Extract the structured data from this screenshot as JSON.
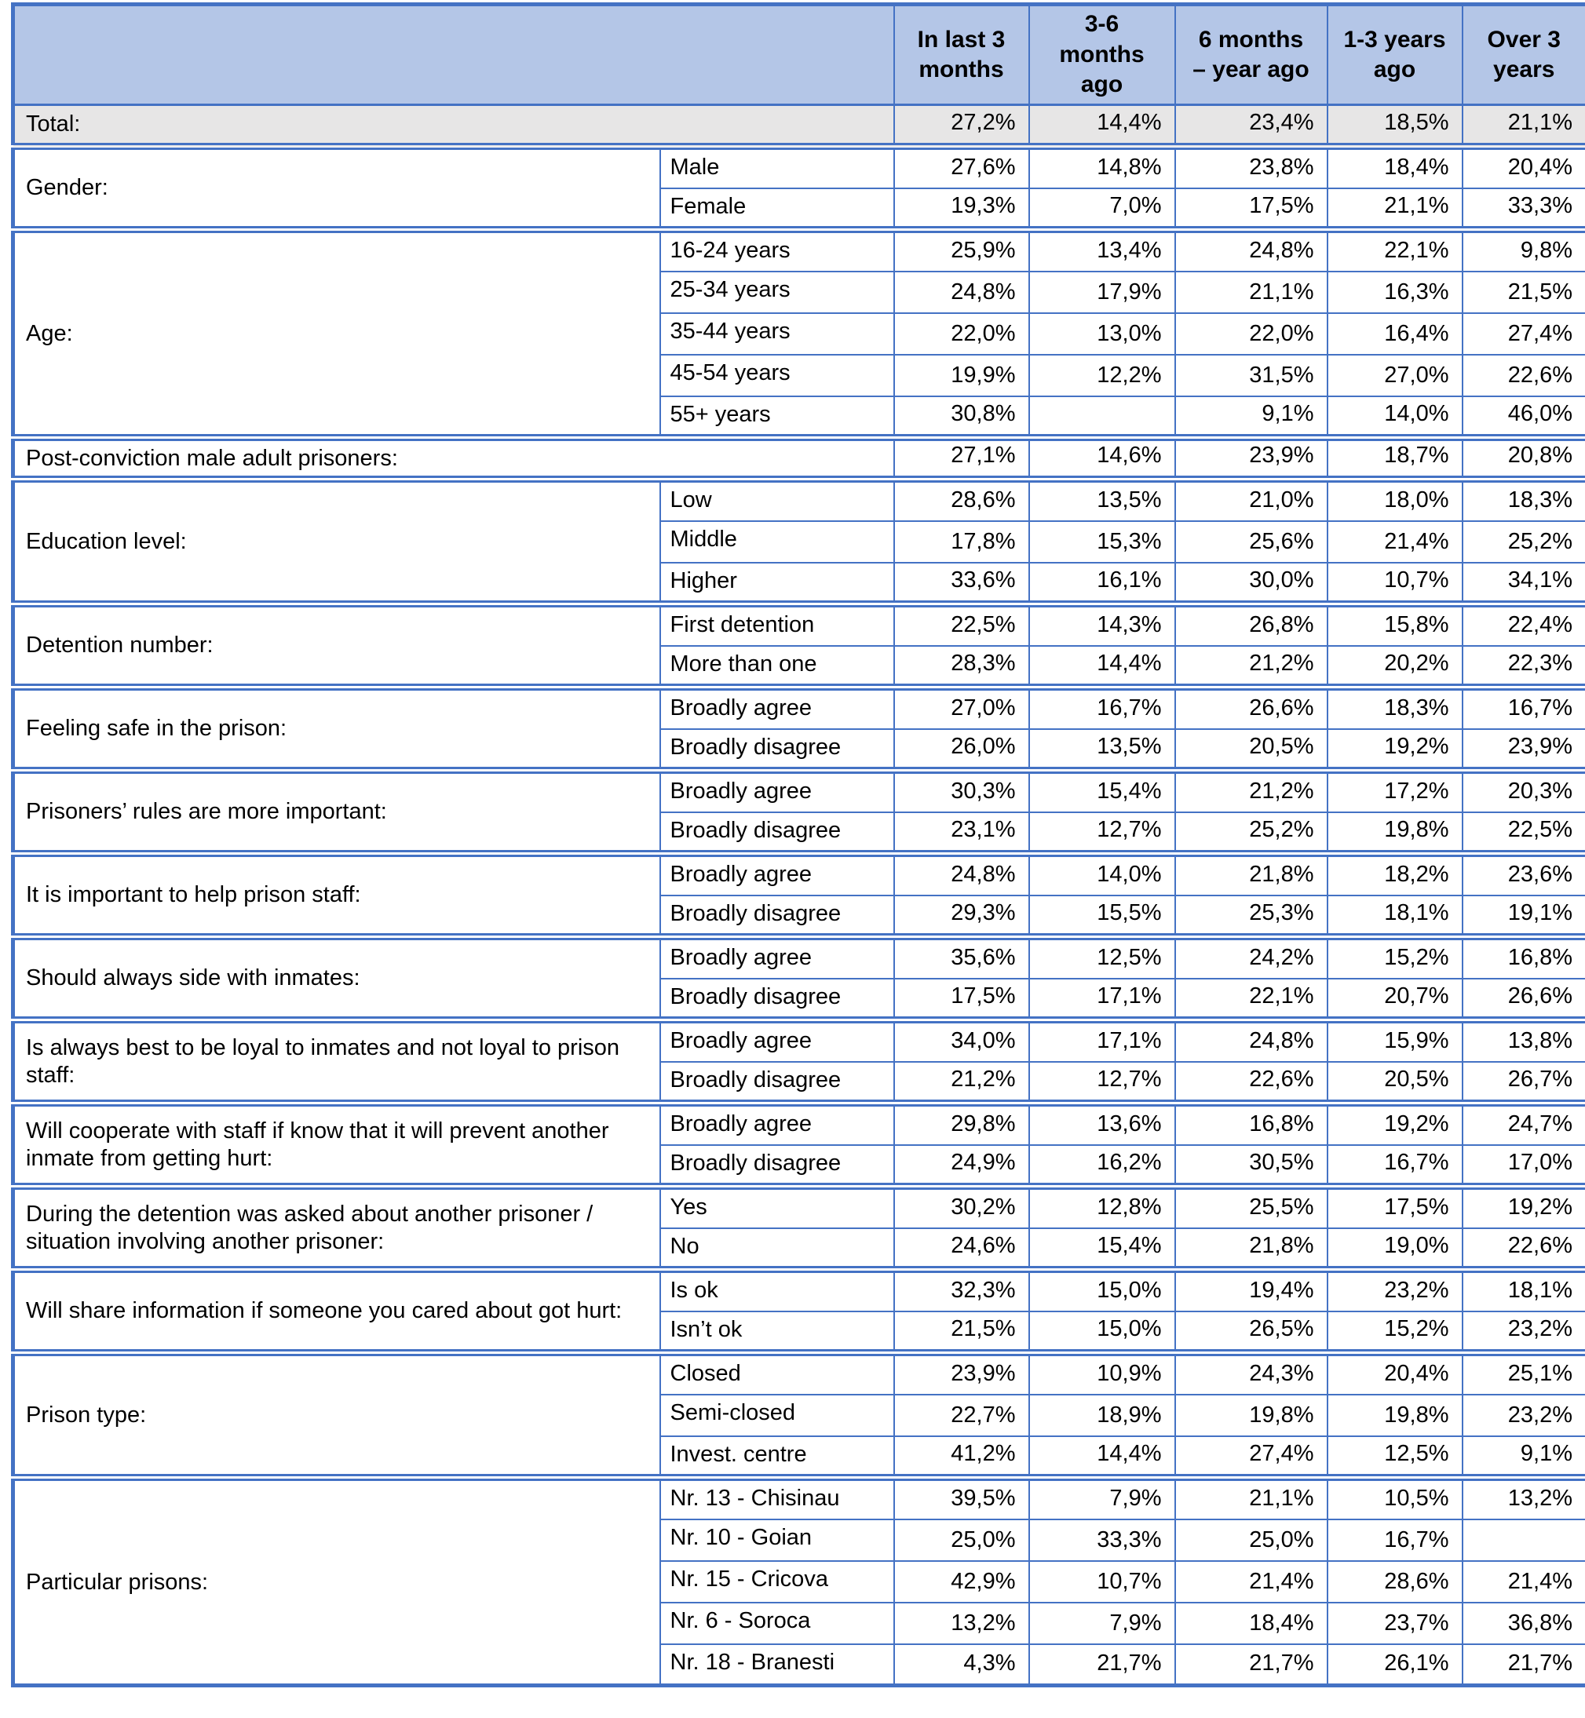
{
  "table": {
    "columns": [
      "In last 3 months",
      "3-6 months ago",
      "6 months – year ago",
      "1-3 years ago",
      "Over 3 years"
    ],
    "total": {
      "label": "Total:",
      "values": [
        "27,2%",
        "14,4%",
        "23,4%",
        "18,5%",
        "21,1%"
      ]
    },
    "groups": [
      {
        "label": "Gender:",
        "rows": [
          {
            "sub": "Male",
            "values": [
              "27,6%",
              "14,8%",
              "23,8%",
              "18,4%",
              "20,4%"
            ]
          },
          {
            "sub": "Female",
            "values": [
              "19,3%",
              "7,0%",
              "17,5%",
              "21,1%",
              "33,3%"
            ]
          }
        ]
      },
      {
        "label": "Age:",
        "rows": [
          {
            "sub": "16-24 years",
            "values": [
              "25,9%",
              "13,4%",
              "24,8%",
              "22,1%",
              "9,8%"
            ]
          },
          {
            "sub": "25-34 years",
            "values": [
              "24,8%",
              "17,9%",
              "21,1%",
              "16,3%",
              "21,5%"
            ]
          },
          {
            "sub": "35-44 years",
            "values": [
              "22,0%",
              "13,0%",
              "22,0%",
              "16,4%",
              "27,4%"
            ]
          },
          {
            "sub": "45-54 years",
            "values": [
              "19,9%",
              "12,2%",
              "31,5%",
              "27,0%",
              "22,6%"
            ]
          },
          {
            "sub": "55+ years",
            "values": [
              "30,8%",
              "",
              "9,1%",
              "14,0%",
              "46,0%"
            ]
          }
        ]
      },
      {
        "label": "Post-conviction male adult prisoners:",
        "rows": [
          {
            "sub": null,
            "values": [
              "27,1%",
              "14,6%",
              "23,9%",
              "18,7%",
              "20,8%"
            ]
          }
        ]
      },
      {
        "label": "Education level:",
        "rows": [
          {
            "sub": "Low",
            "values": [
              "28,6%",
              "13,5%",
              "21,0%",
              "18,0%",
              "18,3%"
            ]
          },
          {
            "sub": "Middle",
            "values": [
              "17,8%",
              "15,3%",
              "25,6%",
              "21,4%",
              "25,2%"
            ]
          },
          {
            "sub": "Higher",
            "values": [
              "33,6%",
              "16,1%",
              "30,0%",
              "10,7%",
              "34,1%"
            ]
          }
        ]
      },
      {
        "label": "Detention number:",
        "rows": [
          {
            "sub": "First detention",
            "values": [
              "22,5%",
              "14,3%",
              "26,8%",
              "15,8%",
              "22,4%"
            ]
          },
          {
            "sub": "More than one",
            "values": [
              "28,3%",
              "14,4%",
              "21,2%",
              "20,2%",
              "22,3%"
            ]
          }
        ]
      },
      {
        "label": "Feeling safe in the prison:",
        "rows": [
          {
            "sub": "Broadly agree",
            "values": [
              "27,0%",
              "16,7%",
              "26,6%",
              "18,3%",
              "16,7%"
            ]
          },
          {
            "sub": "Broadly disagree",
            "values": [
              "26,0%",
              "13,5%",
              "20,5%",
              "19,2%",
              "23,9%"
            ]
          }
        ]
      },
      {
        "label": "Prisoners’ rules are more important:",
        "rows": [
          {
            "sub": "Broadly agree",
            "values": [
              "30,3%",
              "15,4%",
              "21,2%",
              "17,2%",
              "20,3%"
            ]
          },
          {
            "sub": "Broadly disagree",
            "values": [
              "23,1%",
              "12,7%",
              "25,2%",
              "19,8%",
              "22,5%"
            ]
          }
        ]
      },
      {
        "label": "It is important to help prison staff:",
        "rows": [
          {
            "sub": "Broadly agree",
            "values": [
              "24,8%",
              "14,0%",
              "21,8%",
              "18,2%",
              "23,6%"
            ]
          },
          {
            "sub": "Broadly disagree",
            "values": [
              "29,3%",
              "15,5%",
              "25,3%",
              "18,1%",
              "19,1%"
            ]
          }
        ]
      },
      {
        "label": "Should always side with inmates:",
        "rows": [
          {
            "sub": "Broadly agree",
            "values": [
              "35,6%",
              "12,5%",
              "24,2%",
              "15,2%",
              "16,8%"
            ]
          },
          {
            "sub": "Broadly disagree",
            "values": [
              "17,5%",
              "17,1%",
              "22,1%",
              "20,7%",
              "26,6%"
            ]
          }
        ]
      },
      {
        "label": "Is always best to be loyal to inmates and not loyal to prison staff:",
        "rows": [
          {
            "sub": "Broadly agree",
            "values": [
              "34,0%",
              "17,1%",
              "24,8%",
              "15,9%",
              "13,8%"
            ]
          },
          {
            "sub": "Broadly disagree",
            "values": [
              "21,2%",
              "12,7%",
              "22,6%",
              "20,5%",
              "26,7%"
            ]
          }
        ]
      },
      {
        "label": "Will cooperate with staff if know that it will prevent another inmate from getting hurt:",
        "rows": [
          {
            "sub": "Broadly agree",
            "values": [
              "29,8%",
              "13,6%",
              "16,8%",
              "19,2%",
              "24,7%"
            ]
          },
          {
            "sub": "Broadly disagree",
            "values": [
              "24,9%",
              "16,2%",
              "30,5%",
              "16,7%",
              "17,0%"
            ]
          }
        ]
      },
      {
        "label": "During the detention was asked about another prisoner / situation involving another prisoner:",
        "rows": [
          {
            "sub": "Yes",
            "values": [
              "30,2%",
              "12,8%",
              "25,5%",
              "17,5%",
              "19,2%"
            ]
          },
          {
            "sub": "No",
            "values": [
              "24,6%",
              "15,4%",
              "21,8%",
              "19,0%",
              "22,6%"
            ]
          }
        ]
      },
      {
        "label": "Will share information if someone you cared about got hurt:",
        "rows": [
          {
            "sub": "Is ok",
            "values": [
              "32,3%",
              "15,0%",
              "19,4%",
              "23,2%",
              "18,1%"
            ]
          },
          {
            "sub": "Isn’t ok",
            "values": [
              "21,5%",
              "15,0%",
              "26,5%",
              "15,2%",
              "23,2%"
            ]
          }
        ]
      },
      {
        "label": "Prison type:",
        "rows": [
          {
            "sub": "Closed",
            "values": [
              "23,9%",
              "10,9%",
              "24,3%",
              "20,4%",
              "25,1%"
            ]
          },
          {
            "sub": "Semi-closed",
            "values": [
              "22,7%",
              "18,9%",
              "19,8%",
              "19,8%",
              "23,2%"
            ]
          },
          {
            "sub": "Invest. centre",
            "values": [
              "41,2%",
              "14,4%",
              "27,4%",
              "12,5%",
              "9,1%"
            ]
          }
        ]
      },
      {
        "label": "Particular prisons:",
        "rows": [
          {
            "sub": "Nr. 13 - Chisinau",
            "values": [
              "39,5%",
              "7,9%",
              "21,1%",
              "10,5%",
              "13,2%"
            ]
          },
          {
            "sub": "Nr. 10 - Goian",
            "values": [
              "25,0%",
              "33,3%",
              "25,0%",
              "16,7%",
              ""
            ]
          },
          {
            "sub": "Nr. 15 - Cricova",
            "values": [
              "42,9%",
              "10,7%",
              "21,4%",
              "28,6%",
              "21,4%"
            ]
          },
          {
            "sub": "Nr. 6 - Soroca",
            "values": [
              "13,2%",
              "7,9%",
              "18,4%",
              "23,7%",
              "36,8%"
            ]
          },
          {
            "sub": "Nr. 18 - Branesti",
            "values": [
              "4,3%",
              "21,7%",
              "21,7%",
              "26,1%",
              "21,7%"
            ]
          }
        ]
      }
    ],
    "colors": {
      "header_bg": "#b4c6e7",
      "total_bg": "#e7e6e6",
      "border": "#4472c4"
    }
  }
}
